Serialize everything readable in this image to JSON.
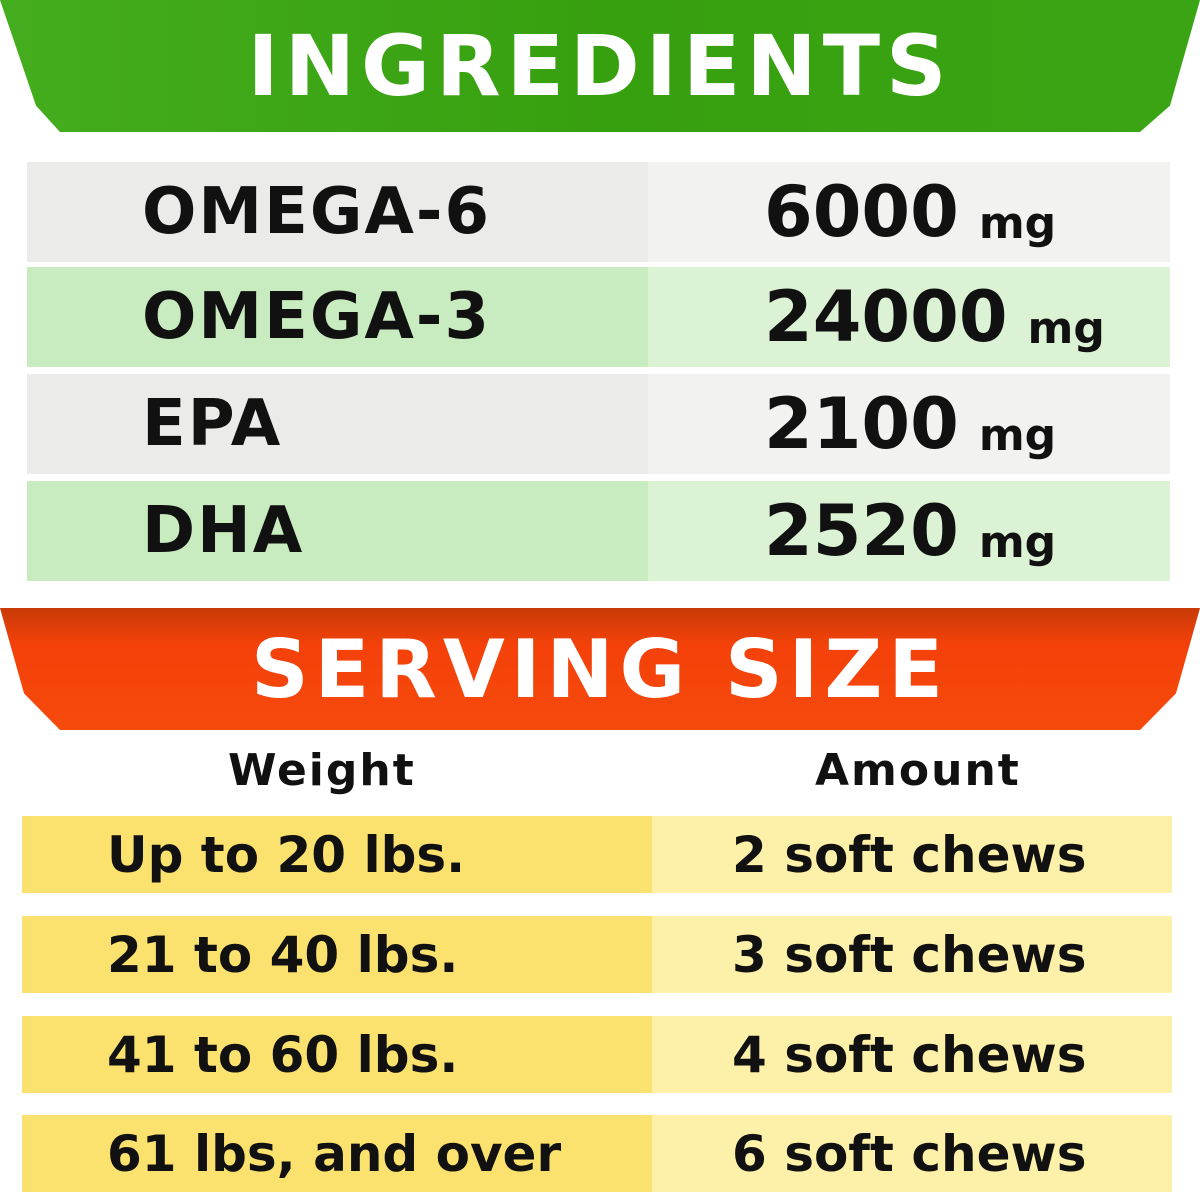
{
  "ingredients": {
    "title": "INGREDIENTS",
    "rows": [
      {
        "name": "OMEGA-6",
        "value": "6000",
        "unit": "mg"
      },
      {
        "name": "OMEGA-3",
        "value": "24000",
        "unit": "mg"
      },
      {
        "name": "EPA",
        "value": "2100",
        "unit": "mg"
      },
      {
        "name": "DHA",
        "value": "2520",
        "unit": "mg"
      }
    ]
  },
  "serving": {
    "title": "SERVING SIZE",
    "headers": {
      "weight": "Weight",
      "amount": "Amount"
    },
    "rows": [
      {
        "weight": "Up to 20 lbs.",
        "amount": "2 soft chews"
      },
      {
        "weight": "21 to 40 lbs.",
        "amount": "3 soft chews"
      },
      {
        "weight": "41 to 60 lbs.",
        "amount": "4 soft chews"
      },
      {
        "weight": "61 lbs, and over",
        "amount": "6 soft chews"
      }
    ]
  },
  "colors": {
    "green": "#3aa414",
    "orange": "#f4410a",
    "yellow": "#fbe26e"
  }
}
